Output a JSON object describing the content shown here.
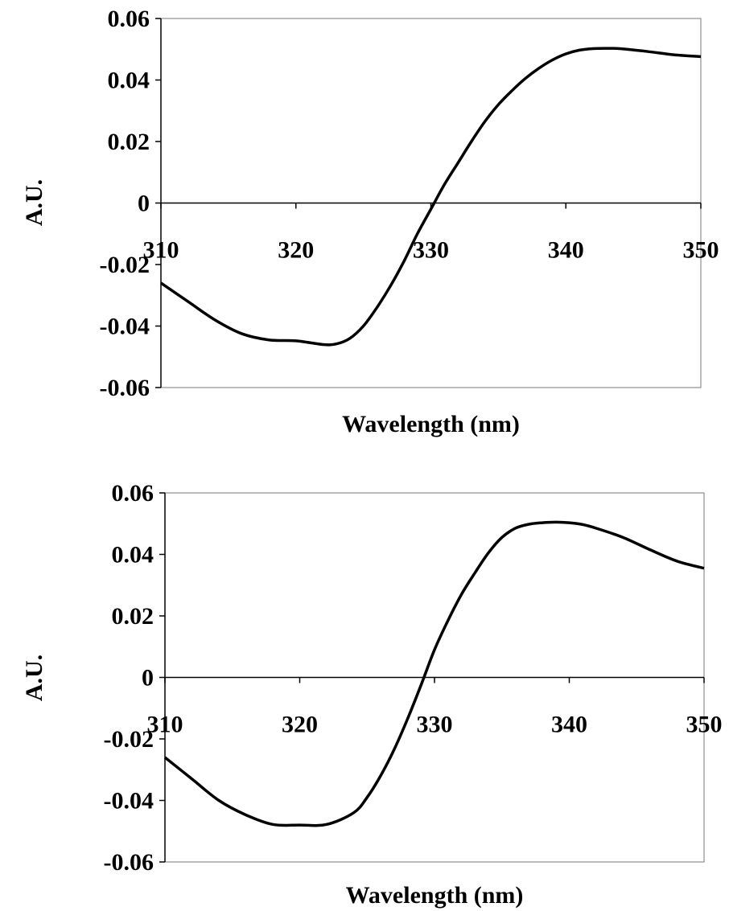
{
  "chart_data": [
    {
      "type": "line",
      "title": "",
      "xlabel": "Wavelength (nm)",
      "ylabel": "A.U.",
      "xlim": [
        310,
        350
      ],
      "ylim": [
        -0.06,
        0.06
      ],
      "xticks": [
        "310",
        "320",
        "330",
        "340",
        "350"
      ],
      "yticks": [
        "0.06",
        "0.04",
        "0.02",
        "0",
        "-0.02",
        "-0.04",
        "-0.06"
      ],
      "grid": false,
      "legend": "none",
      "series": [
        {
          "color": "#000000",
          "x": [
            310,
            312,
            314,
            316,
            318,
            320,
            322,
            323,
            324,
            325,
            326,
            327,
            328,
            329,
            330,
            331,
            332,
            333,
            334,
            335,
            336,
            337,
            338,
            339,
            340,
            341,
            342,
            343,
            344,
            346,
            348,
            350
          ],
          "y": [
            -0.026,
            -0.032,
            -0.038,
            -0.0425,
            -0.0445,
            -0.0448,
            -0.046,
            -0.0458,
            -0.044,
            -0.04,
            -0.034,
            -0.027,
            -0.019,
            -0.01,
            -0.002,
            0.006,
            0.013,
            0.02,
            0.0265,
            0.032,
            0.0365,
            0.0405,
            0.0438,
            0.0465,
            0.0485,
            0.0497,
            0.0502,
            0.0503,
            0.0502,
            0.0493,
            0.0482,
            0.0476
          ]
        }
      ]
    },
    {
      "type": "line",
      "title": "",
      "xlabel": "Wavelength (nm)",
      "ylabel": "A.U.",
      "xlim": [
        310,
        350
      ],
      "ylim": [
        -0.06,
        0.06
      ],
      "xticks": [
        "310",
        "320",
        "330",
        "340",
        "350"
      ],
      "yticks": [
        "0.06",
        "0.04",
        "0.02",
        "0",
        "-0.02",
        "-0.04",
        "-0.06"
      ],
      "grid": false,
      "legend": "none",
      "series": [
        {
          "color": "#000000",
          "x": [
            310,
            312,
            314,
            316,
            318,
            320,
            322,
            324,
            325,
            326,
            327,
            328,
            329,
            330,
            331,
            332,
            333,
            334,
            335,
            336,
            337,
            338,
            339,
            340,
            341,
            342,
            344,
            346,
            348,
            350
          ],
          "y": [
            -0.026,
            -0.033,
            -0.04,
            -0.0447,
            -0.0478,
            -0.048,
            -0.0478,
            -0.044,
            -0.039,
            -0.032,
            -0.0235,
            -0.0135,
            -0.0025,
            0.009,
            0.0185,
            0.027,
            0.034,
            0.0405,
            0.0455,
            0.0485,
            0.0498,
            0.0503,
            0.0505,
            0.0503,
            0.0497,
            0.0485,
            0.0455,
            0.0415,
            0.0378,
            0.0355
          ]
        }
      ]
    }
  ]
}
